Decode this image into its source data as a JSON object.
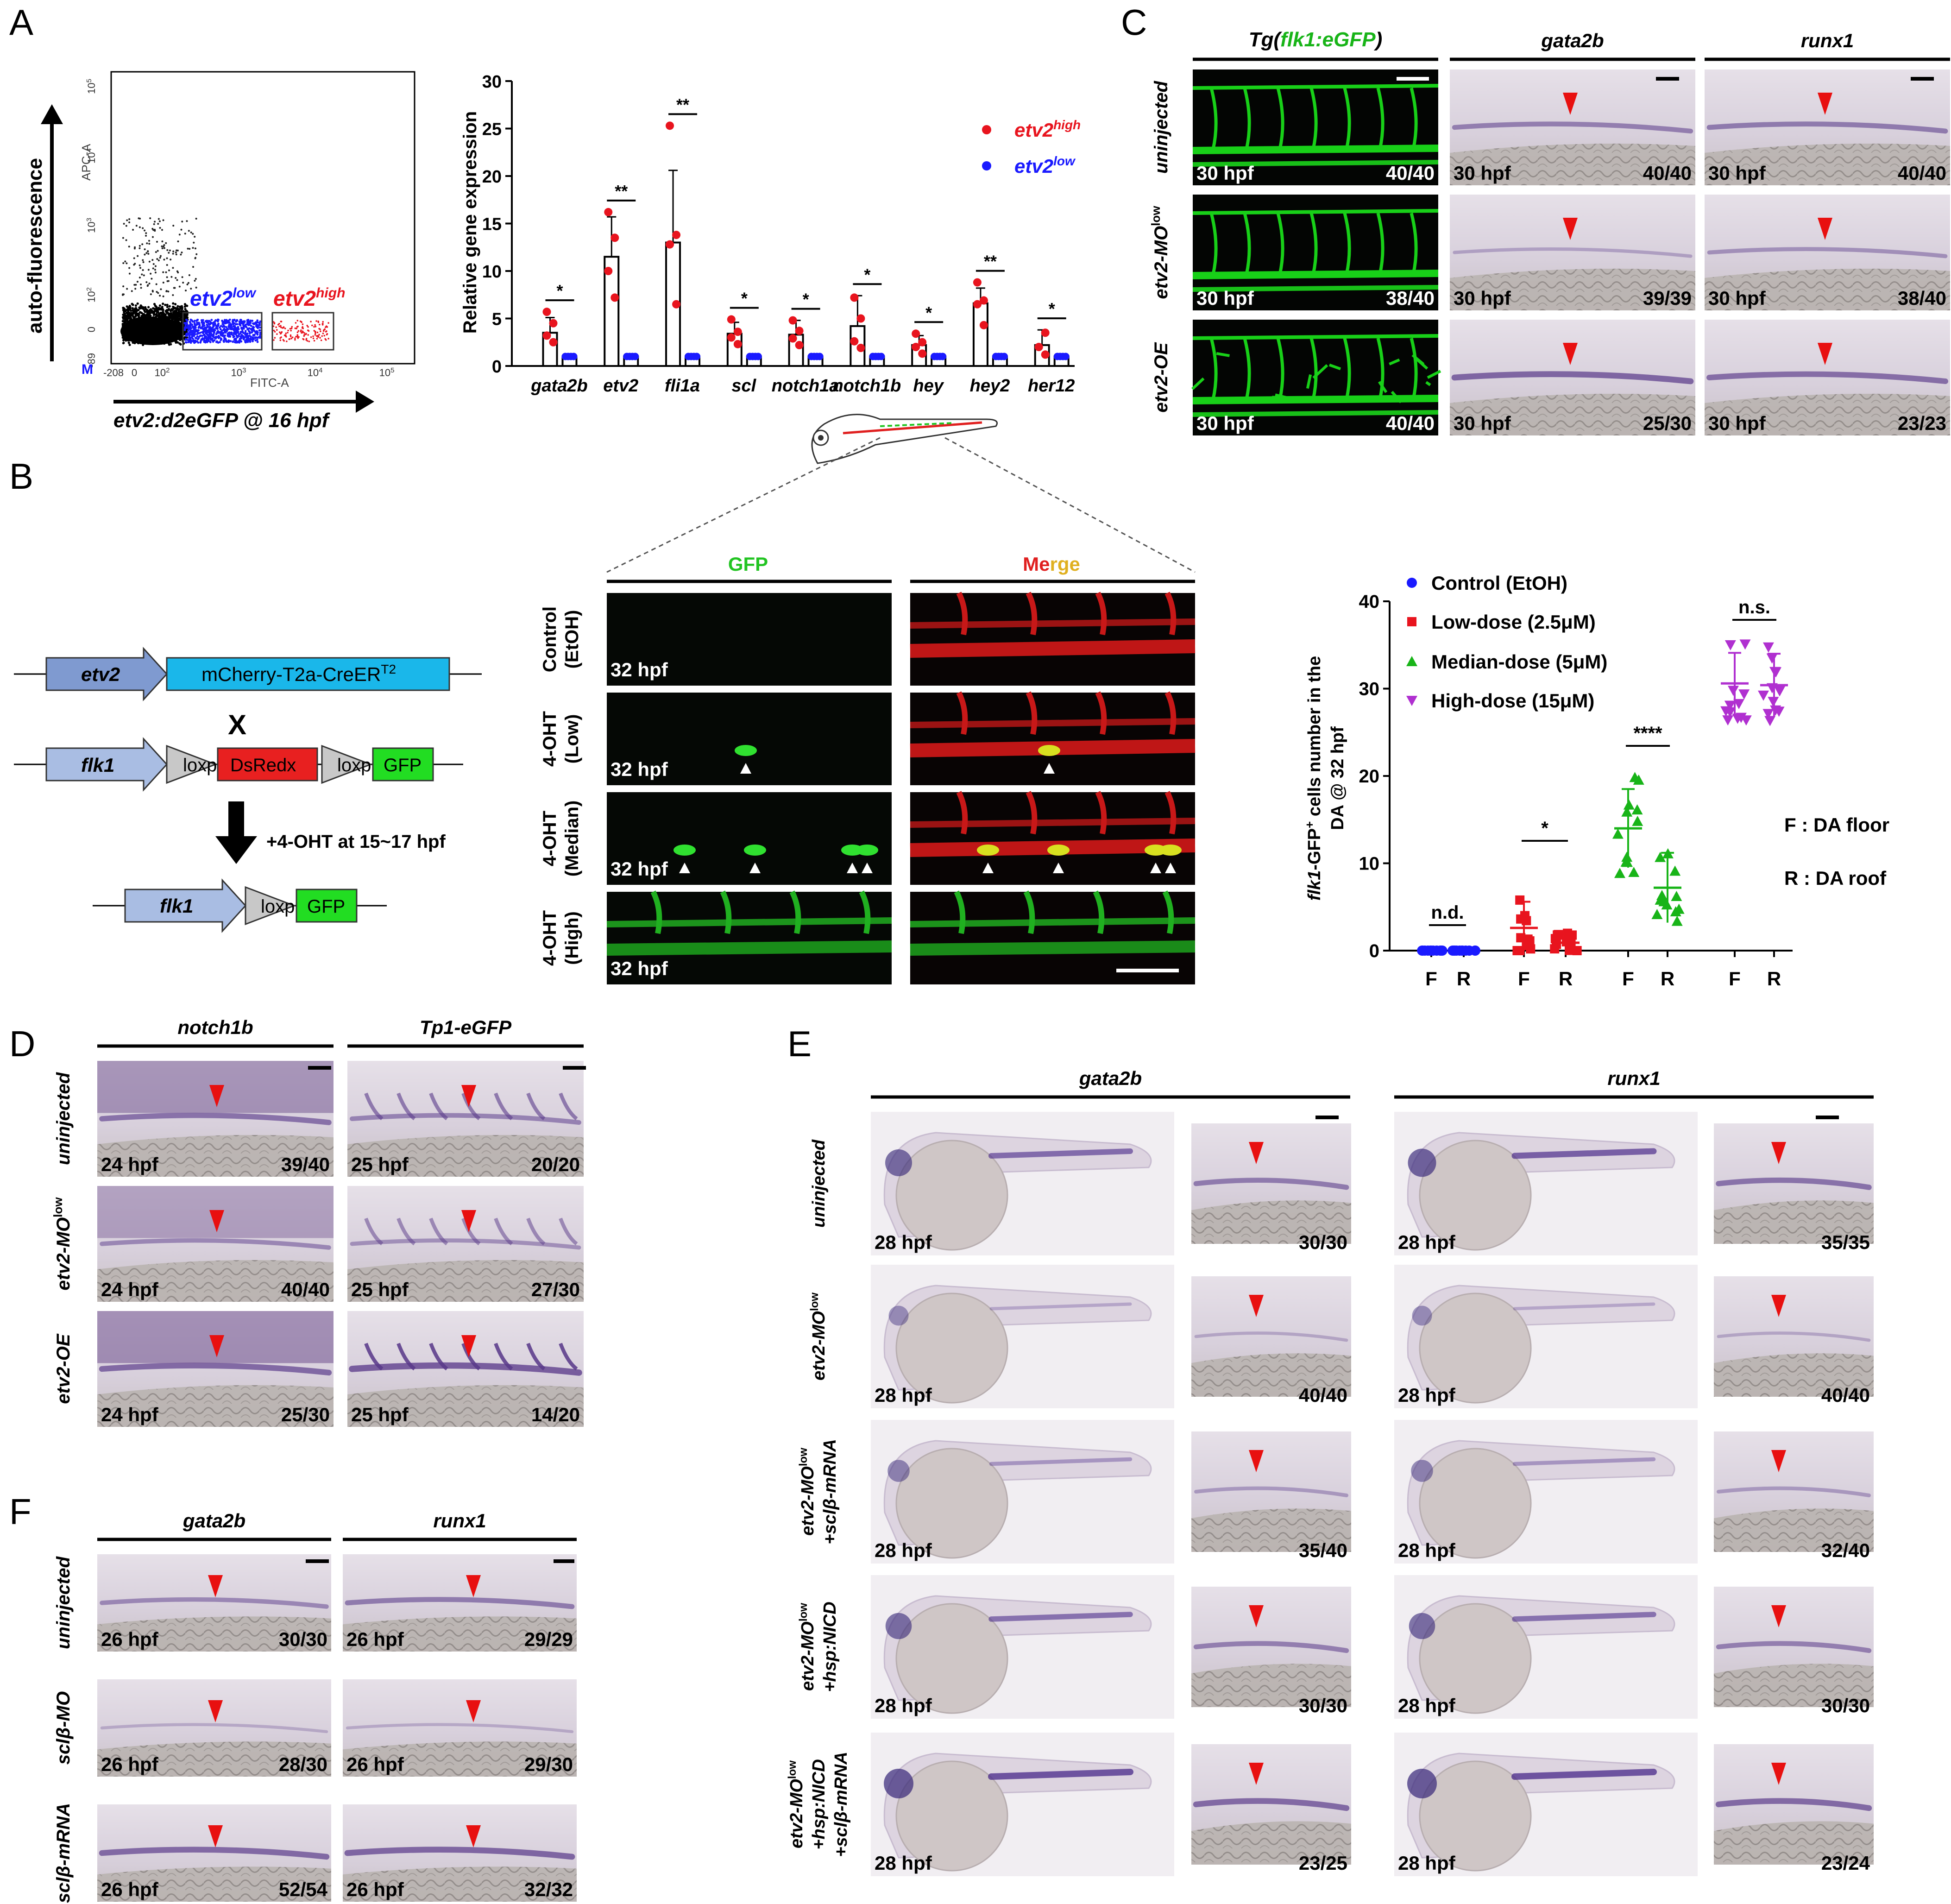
{
  "colors": {
    "red": "#e8141e",
    "blue": "#1a1aff",
    "green": "#18b418",
    "purple": "#b030d0",
    "gfp": "#22c422",
    "dsred": "#e02020",
    "arrow": "#e81010",
    "ish_bg": "#ded6e2",
    "ish_stain": "#5a3a8a",
    "vessel": "#18d018",
    "embryo_bg": "#f2eef2"
  },
  "panel_letters": {
    "A": "A",
    "B": "B",
    "C": "C",
    "D": "D",
    "E": "E",
    "F": "F"
  },
  "panelA": {
    "flow": {
      "y_axis": "auto-fluorescence",
      "y_channel": "APC-A",
      "x_channel": "FITC-A",
      "x_label": "etv2:d2eGFP @ 16 hpf",
      "gate_low": "etv2",
      "gate_low_sup": "low",
      "gate_high": "etv2",
      "gate_high_sup": "high",
      "marker": "M",
      "y_ticks": [
        {
          "b": "10",
          "e": "5"
        },
        {
          "b": "10",
          "e": "4"
        },
        {
          "b": "10",
          "e": "3"
        },
        {
          "b": "10",
          "e": "2"
        },
        {
          "b": "0",
          "e": ""
        },
        {
          "b": "-89",
          "e": ""
        }
      ],
      "x_ticks": [
        {
          "b": "-208",
          "e": ""
        },
        {
          "b": "0",
          "e": ""
        },
        {
          "b": "10",
          "e": "2"
        },
        {
          "b": "10",
          "e": "3"
        },
        {
          "b": "10",
          "e": "4"
        },
        {
          "b": "10",
          "e": "5"
        }
      ]
    },
    "chart_data": {
      "type": "bar",
      "ylabel": "Relative gene expression",
      "ylim": [
        0,
        30
      ],
      "yticks": [
        "0",
        "5",
        "10",
        "15",
        "20",
        "25",
        "30"
      ],
      "categories": [
        "gata2b",
        "etv2",
        "fli1a",
        "scl",
        "notch1a",
        "notch1b",
        "hey",
        "hey2",
        "her12"
      ],
      "series": [
        {
          "name": "etv2high",
          "values": [
            3.5,
            11.5,
            13,
            3.4,
            3.3,
            4.2,
            2.2,
            6.6,
            2.2
          ]
        },
        {
          "name": "etv2low",
          "values": [
            1,
            1,
            1,
            1,
            1,
            1,
            1,
            1,
            1
          ]
        }
      ],
      "error": [
        1.6,
        4.2,
        7.6,
        1.2,
        1.5,
        3.2,
        1.0,
        1.6,
        1.6
      ],
      "points_high": [
        [
          2.5,
          3.2,
          4.5,
          5.7
        ],
        [
          7.2,
          10,
          13.5,
          16.2
        ],
        [
          6.5,
          12.8,
          13.8,
          25.3
        ],
        [
          2.3,
          3,
          3.6,
          4.9
        ],
        [
          2.2,
          2.9,
          3.7,
          4.8
        ],
        [
          1.9,
          2.6,
          5,
          7.2
        ],
        [
          1.3,
          2,
          2.5,
          3.4
        ],
        [
          4.3,
          6.5,
          6.9,
          8.8
        ],
        [
          1.2,
          2,
          3.5
        ]
      ],
      "significance": [
        "*",
        "**",
        "**",
        "*",
        "*",
        "*",
        "*",
        "**",
        "*"
      ],
      "legend": [
        {
          "label": "etv2",
          "sup": "high"
        },
        {
          "label": "etv2",
          "sup": "low"
        }
      ]
    }
  },
  "panelB": {
    "construct": {
      "etv2": "etv2",
      "cassette": "mCherry-T2a-CreER",
      "cassette_sup": "T2",
      "cross": "X",
      "flk1": "flk1",
      "loxp": "loxp",
      "dsred": "DsRedx",
      "gfp": "GFP",
      "treatment": "+4-OHT at 15~17 hpf"
    },
    "col_gfp": "GFP",
    "col_merge_a": "Me",
    "col_merge_b": "rge",
    "rows": [
      {
        "l1": "Control",
        "l2": "(EtOH)",
        "time": "32 hpf"
      },
      {
        "l1": "4-OHT",
        "l2": "(Low)",
        "time": "32 hpf"
      },
      {
        "l1": "4-OHT",
        "l2": "(Median)",
        "time": "32 hpf"
      },
      {
        "l1": "4-OHT",
        "l2": "(High)",
        "time": "32 hpf"
      }
    ],
    "scatter_data": {
      "type": "scatter",
      "ylabel_gene": "flk1",
      "ylabel_rest": "-GFP",
      "ylabel_sup": "+",
      "ylabel_rest2": " cells number in the",
      "ylabel_line2": "DA @ 32 hpf",
      "ylim": [
        0,
        40
      ],
      "yticks": [
        "0",
        "10",
        "20",
        "30",
        "40"
      ],
      "groups": [
        "F",
        "R",
        "F",
        "R",
        "F",
        "R",
        "F",
        "R"
      ],
      "legend": [
        "Control (EtOH)",
        "Low-dose (2.5μM)",
        "Median-dose (5μM)",
        "High-dose (15μM)"
      ],
      "means": [
        0,
        0,
        2.6,
        0.9,
        14,
        7.2,
        30.6,
        30.4
      ],
      "sd": [
        0,
        0,
        3,
        1,
        4.5,
        4,
        3.5,
        3.6
      ],
      "sig": [
        "n.d.",
        "*",
        "****",
        "n.s."
      ],
      "note_f": "F : DA floor",
      "note_r": "R : DA roof"
    }
  },
  "panelC": {
    "cols": [
      {
        "gene": "Tg(",
        "gene2": "flk1:eGFP",
        "gene3": ")"
      },
      {
        "gene": "gata2b"
      },
      {
        "gene": "runx1"
      }
    ],
    "rows": [
      {
        "label": "uninjected",
        "sup": ""
      },
      {
        "label": "etv2-MO",
        "sup": "low"
      },
      {
        "label": "etv2-OE",
        "sup": ""
      }
    ],
    "time": "30 hpf",
    "counts": [
      [
        "40/40",
        "40/40",
        "40/40"
      ],
      [
        "38/40",
        "39/39",
        "38/40"
      ],
      [
        "40/40",
        "25/30",
        "23/23"
      ]
    ]
  },
  "panelD": {
    "cols": [
      "notch1b",
      "Tp1-eGFP"
    ],
    "rows": [
      {
        "label": "uninjected",
        "sup": ""
      },
      {
        "label": "etv2-MO",
        "sup": "low"
      },
      {
        "label": "etv2-OE",
        "sup": ""
      }
    ],
    "times": [
      "24 hpf",
      "25 hpf"
    ],
    "counts": [
      [
        "39/40",
        "20/20"
      ],
      [
        "40/40",
        "27/30"
      ],
      [
        "25/30",
        "14/20"
      ]
    ]
  },
  "panelE": {
    "cols": [
      "gata2b",
      "runx1"
    ],
    "rows": [
      {
        "l1": "uninjected",
        "l2": "",
        "l3": ""
      },
      {
        "l1": "etv2-MO",
        "sup": "low",
        "l2": "",
        "l3": ""
      },
      {
        "l1": "etv2-MO",
        "sup": "low",
        "l2": "+sclβ-mRNA",
        "l3": ""
      },
      {
        "l1": "etv2-MO",
        "sup": "low",
        "l2": "+hsp:NICD",
        "l3": ""
      },
      {
        "l1": "etv2-MO",
        "sup": "low",
        "l2": "+hsp:NICD",
        "l3": "+sclβ-mRNA"
      }
    ],
    "time": "28 hpf",
    "counts": [
      [
        "30/30",
        "35/35"
      ],
      [
        "40/40",
        "40/40"
      ],
      [
        "35/40",
        "32/40"
      ],
      [
        "30/30",
        "30/30"
      ],
      [
        "23/25",
        "23/24"
      ]
    ]
  },
  "panelF": {
    "cols": [
      "gata2b",
      "runx1"
    ],
    "rows": [
      "uninjected",
      "sclβ-MO",
      "sclβ-mRNA"
    ],
    "time": "26 hpf",
    "counts": [
      [
        "30/30",
        "29/29"
      ],
      [
        "28/30",
        "29/30"
      ],
      [
        "52/54",
        "32/32"
      ]
    ]
  }
}
